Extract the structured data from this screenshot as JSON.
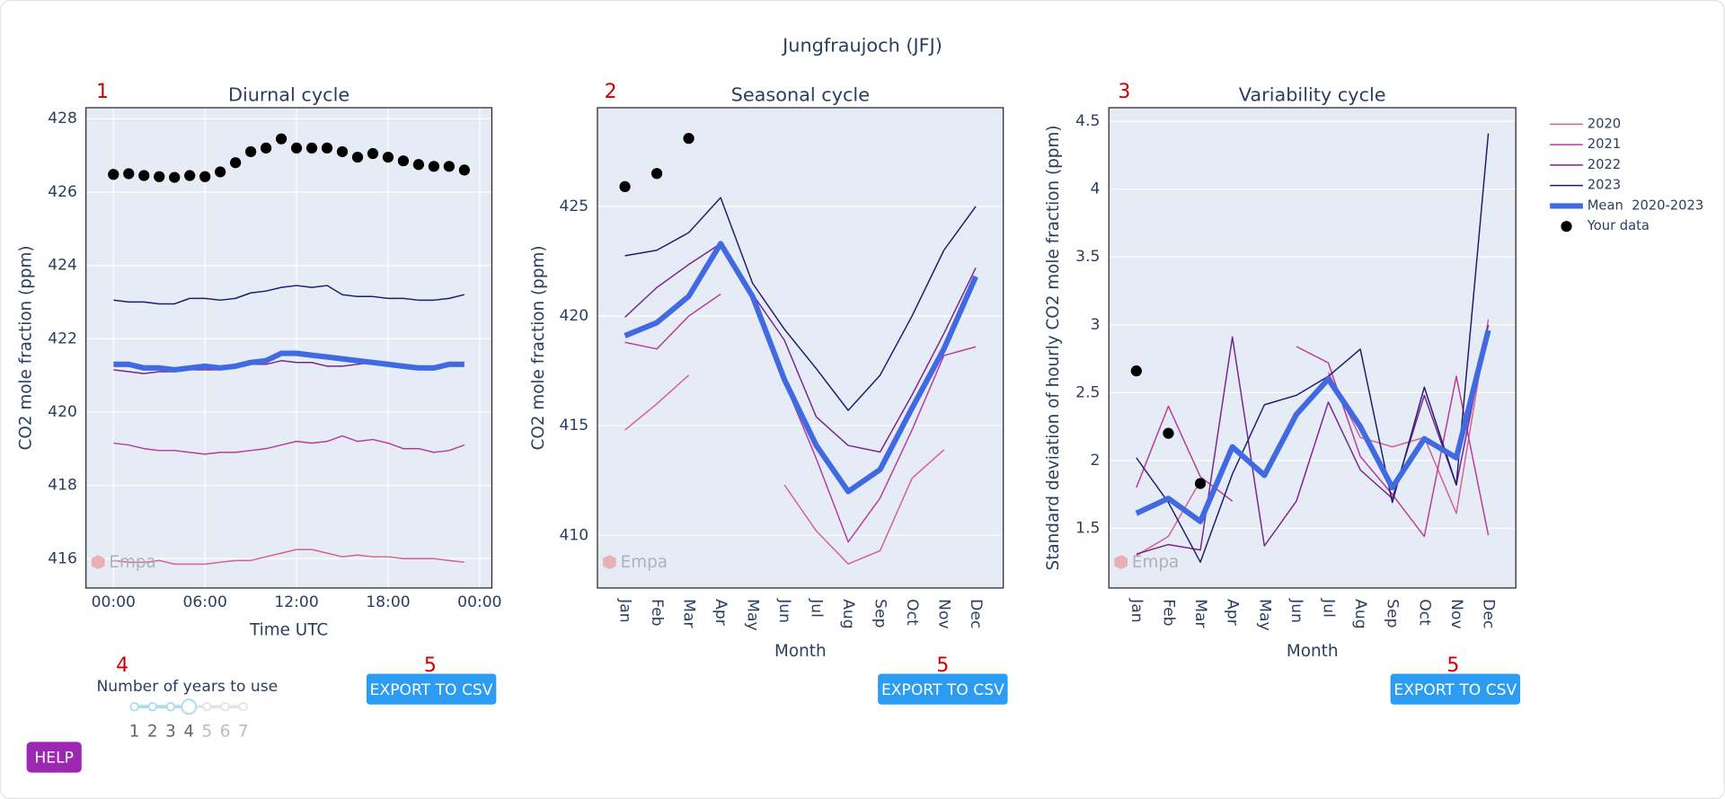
{
  "ui": {
    "title": "Jungfraujoch (JFJ)",
    "panel_numbers": [
      "1",
      "2",
      "3",
      "4",
      "5",
      "5",
      "5"
    ],
    "slider": {
      "label": "Number of years to use",
      "options": [
        1,
        2,
        3,
        4,
        5,
        6,
        7
      ],
      "value": 4
    },
    "buttons": [
      "EXPORT TO CSV",
      "EXPORT TO CSV",
      "EXPORT TO CSV"
    ],
    "help": "HELP",
    "watermark": "Empa"
  },
  "chart_data": [
    {
      "type": "line",
      "title": "Diurnal cycle",
      "x_label": "Time UTC",
      "y_label": "CO2 mole fraction (ppm)",
      "x": [
        0,
        1,
        2,
        3,
        4,
        5,
        6,
        7,
        8,
        9,
        10,
        11,
        12,
        13,
        14,
        15,
        16,
        17,
        18,
        19,
        20,
        21,
        22,
        23
      ],
      "xlim": [
        -1.8,
        24.8
      ],
      "xticks": [
        {
          "value": 0,
          "label": "00:00"
        },
        {
          "value": 6,
          "label": "06:00"
        },
        {
          "value": 12,
          "label": "12:00"
        },
        {
          "value": 18,
          "label": "18:00"
        },
        {
          "value": 24,
          "label": "00:00"
        }
      ],
      "ylim": [
        415.2,
        428.3
      ],
      "yticks": [
        416,
        418,
        420,
        422,
        424,
        426,
        428
      ],
      "grid": true,
      "grid_x": true,
      "series": [
        {
          "color": "#d6608e",
          "mode": "lines",
          "width": 1.2,
          "values": [
            415.95,
            415.9,
            415.9,
            415.95,
            415.85,
            415.85,
            415.85,
            415.9,
            415.95,
            415.95,
            416.05,
            416.15,
            416.25,
            416.25,
            416.15,
            416.05,
            416.1,
            416.05,
            416.05,
            416.0,
            416.0,
            416.0,
            415.95,
            415.9
          ]
        },
        {
          "color": "#b83a9e",
          "mode": "lines",
          "width": 1.2,
          "values": [
            419.15,
            419.1,
            419.0,
            418.95,
            418.95,
            418.9,
            418.85,
            418.9,
            418.9,
            418.95,
            419.0,
            419.1,
            419.2,
            419.15,
            419.2,
            419.35,
            419.2,
            419.25,
            419.15,
            419.0,
            419.0,
            418.9,
            418.95,
            419.1
          ]
        },
        {
          "color": "#7a2491",
          "mode": "lines",
          "width": 1.2,
          "values": [
            421.15,
            421.1,
            421.05,
            421.1,
            421.1,
            421.15,
            421.15,
            421.15,
            421.2,
            421.3,
            421.3,
            421.4,
            421.35,
            421.35,
            421.25,
            421.25,
            421.3,
            421.35,
            421.3,
            421.3,
            421.25,
            421.2,
            421.25,
            421.3
          ]
        },
        {
          "color": "#1f1c6b",
          "mode": "lines",
          "width": 1.2,
          "values": [
            423.05,
            423.0,
            423.0,
            422.95,
            422.95,
            423.1,
            423.1,
            423.05,
            423.1,
            423.25,
            423.3,
            423.4,
            423.45,
            423.4,
            423.45,
            423.2,
            423.15,
            423.15,
            423.1,
            423.1,
            423.05,
            423.05,
            423.1,
            423.2
          ]
        },
        {
          "color": "#4169e1",
          "mode": "lines",
          "width": 5,
          "values": [
            421.3,
            421.3,
            421.2,
            421.2,
            421.15,
            421.2,
            421.25,
            421.2,
            421.25,
            421.35,
            421.4,
            421.6,
            421.6,
            421.55,
            421.5,
            421.45,
            421.4,
            421.35,
            421.3,
            421.25,
            421.2,
            421.2,
            421.3,
            421.3
          ]
        },
        {
          "color": "#000000",
          "mode": "markers",
          "values": [
            426.48,
            426.5,
            426.45,
            426.42,
            426.4,
            426.45,
            426.42,
            426.55,
            426.8,
            427.1,
            427.2,
            427.45,
            427.2,
            427.2,
            427.2,
            427.1,
            426.95,
            427.05,
            426.95,
            426.85,
            426.75,
            426.7,
            426.7,
            426.6
          ]
        }
      ]
    },
    {
      "type": "line",
      "title": "Seasonal cycle",
      "x_label": "Month",
      "y_label": "CO2 mole fraction (ppm)",
      "categories": [
        "Jan",
        "Feb",
        "Mar",
        "Apr",
        "May",
        "Jun",
        "Jul",
        "Aug",
        "Sep",
        "Oct",
        "Nov",
        "Dec"
      ],
      "ylim": [
        407.6,
        429.5
      ],
      "yticks": [
        410,
        415,
        420,
        425
      ],
      "grid": true,
      "series": [
        {
          "color": "#d6608e",
          "mode": "lines",
          "width": 1.2,
          "values": [
            414.8,
            416.0,
            417.3,
            null,
            null,
            412.3,
            410.2,
            408.7,
            409.3,
            412.6,
            413.9,
            null
          ]
        },
        {
          "color": "#b83a9e",
          "mode": "lines",
          "width": 1.2,
          "values": [
            418.8,
            418.5,
            420.0,
            421.0,
            null,
            417.0,
            413.5,
            409.7,
            411.7,
            414.8,
            418.2,
            418.6
          ]
        },
        {
          "color": "#7a2491",
          "mode": "lines",
          "width": 1.2,
          "values": [
            419.95,
            421.3,
            422.35,
            423.3,
            421.0,
            418.9,
            415.4,
            414.1,
            413.8,
            416.4,
            419.2,
            422.2
          ]
        },
        {
          "color": "#1f1c6b",
          "mode": "lines",
          "width": 1.2,
          "values": [
            422.75,
            423.0,
            423.8,
            425.4,
            421.5,
            419.4,
            417.6,
            415.7,
            417.3,
            420.0,
            423.0,
            425.0
          ]
        },
        {
          "color": "#4169e1",
          "mode": "lines",
          "width": 5,
          "values": [
            419.1,
            419.7,
            420.9,
            423.3,
            420.9,
            417.1,
            414.1,
            412.0,
            413.0,
            415.8,
            418.5,
            421.8
          ]
        },
        {
          "color": "#000000",
          "mode": "markers",
          "values": [
            425.9,
            426.5,
            428.1,
            null,
            null,
            null,
            null,
            null,
            null,
            null,
            null,
            null
          ]
        }
      ]
    },
    {
      "type": "line",
      "title": "Variability cycle",
      "x_label": "Month",
      "y_label": "Standard deviation of hourly CO2 mole fraction (ppm)",
      "categories": [
        "Jan",
        "Feb",
        "Mar",
        "Apr",
        "May",
        "Jun",
        "Jul",
        "Aug",
        "Sep",
        "Oct",
        "Nov",
        "Dec"
      ],
      "ylim": [
        1.06,
        4.6
      ],
      "yticks": [
        1.5,
        2,
        2.5,
        3,
        3.5,
        4,
        4.5
      ],
      "grid": true,
      "legend": "right",
      "series": [
        {
          "name": "2020",
          "color": "#d6608e",
          "mode": "lines",
          "width": 1.2,
          "values": [
            1.3,
            1.44,
            1.85,
            null,
            null,
            null,
            2.65,
            2.17,
            2.1,
            2.17,
            1.61,
            3.04
          ]
        },
        {
          "name": "2021",
          "color": "#b83a9e",
          "mode": "lines",
          "width": 1.2,
          "values": [
            1.8,
            2.4,
            1.88,
            1.7,
            null,
            2.84,
            2.72,
            2.03,
            1.75,
            1.44,
            2.62,
            1.45
          ]
        },
        {
          "name": "2022",
          "color": "#7a2491",
          "mode": "lines",
          "width": 1.2,
          "values": [
            1.31,
            1.38,
            1.34,
            2.91,
            1.37,
            1.7,
            2.43,
            1.93,
            1.72,
            2.48,
            1.82,
            3.0
          ]
        },
        {
          "name": "2023",
          "color": "#1f1c6b",
          "mode": "lines",
          "width": 1.2,
          "values": [
            2.02,
            1.69,
            1.25,
            1.9,
            2.41,
            2.48,
            2.62,
            2.82,
            1.69,
            2.54,
            1.82,
            4.41
          ]
        },
        {
          "name": "Mean  2020-2023",
          "color": "#4169e1",
          "mode": "lines",
          "width": 5,
          "values": [
            1.61,
            1.72,
            1.55,
            2.1,
            1.89,
            2.34,
            2.6,
            2.25,
            1.8,
            2.16,
            2.02,
            2.96
          ]
        },
        {
          "name": "Your data",
          "color": "#000000",
          "mode": "markers",
          "values": [
            2.66,
            2.2,
            1.83,
            null,
            null,
            null,
            null,
            null,
            null,
            null,
            null,
            null
          ]
        }
      ]
    }
  ]
}
